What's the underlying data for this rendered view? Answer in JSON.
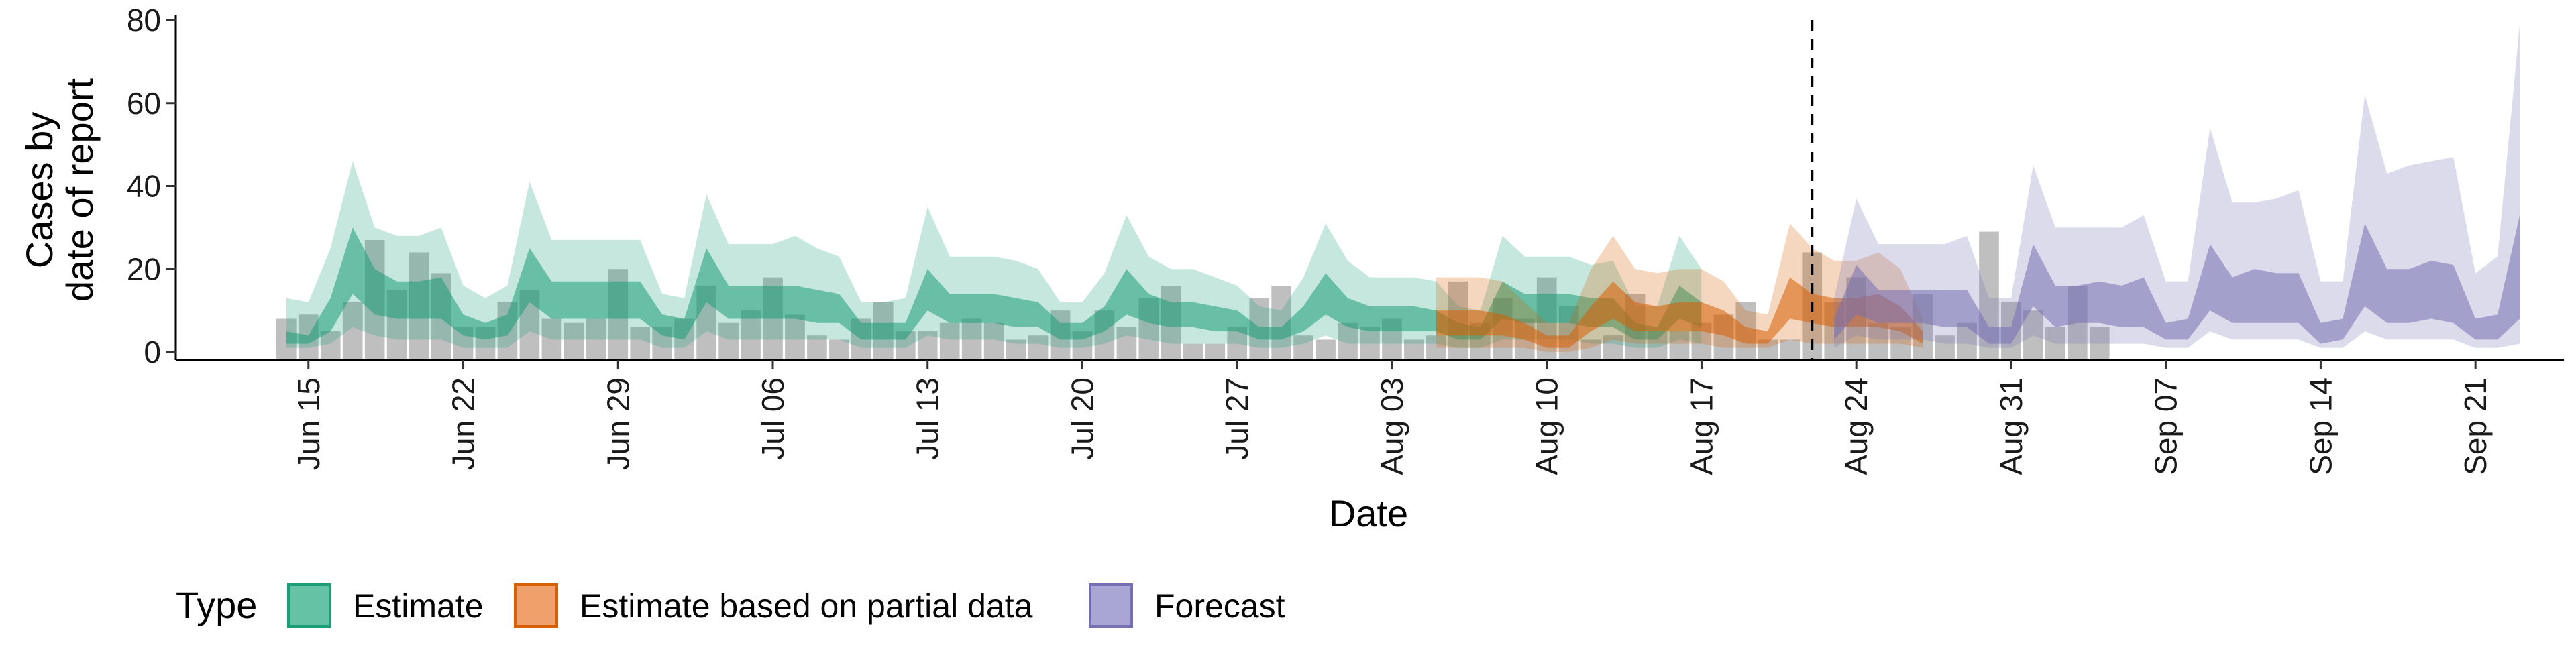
{
  "chart_data": {
    "type": "area",
    "title": "",
    "xlabel": "Date",
    "ylabel": [
      "Cases by",
      "date of report"
    ],
    "ylim": [
      0,
      80
    ],
    "yticks": [
      0,
      20,
      40,
      60,
      80
    ],
    "xlim": [
      "2020-06-09",
      "2020-09-25"
    ],
    "xticks": [
      {
        "date": "2020-06-15",
        "label": "Jun 15"
      },
      {
        "date": "2020-06-22",
        "label": "Jun 22"
      },
      {
        "date": "2020-06-29",
        "label": "Jun 29"
      },
      {
        "date": "2020-07-06",
        "label": "Jul 06"
      },
      {
        "date": "2020-07-13",
        "label": "Jul 13"
      },
      {
        "date": "2020-07-20",
        "label": "Jul 20"
      },
      {
        "date": "2020-07-27",
        "label": "Jul 27"
      },
      {
        "date": "2020-08-03",
        "label": "Aug 03"
      },
      {
        "date": "2020-08-10",
        "label": "Aug 10"
      },
      {
        "date": "2020-08-17",
        "label": "Aug 17"
      },
      {
        "date": "2020-08-24",
        "label": "Aug 24"
      },
      {
        "date": "2020-08-31",
        "label": "Aug 31"
      },
      {
        "date": "2020-09-07",
        "label": "Sep 07"
      },
      {
        "date": "2020-09-14",
        "label": "Sep 14"
      },
      {
        "date": "2020-09-21",
        "label": "Sep 21"
      }
    ],
    "vline": "2020-08-22",
    "grid": false,
    "legend": {
      "position": "bottom-left",
      "title": "Type",
      "entries": [
        {
          "label": "Estimate",
          "fill": "#66c2a5",
          "stroke": "#1b9e77"
        },
        {
          "label": "Estimate based on partial data",
          "fill": "#f0a06a",
          "stroke": "#d95f02"
        },
        {
          "label": "Forecast",
          "fill": "#a9a5d4",
          "stroke": "#7570b3"
        }
      ]
    },
    "observed_start": "2020-06-14",
    "observed_cases": [
      8,
      9,
      5,
      12,
      27,
      15,
      24,
      19,
      6,
      6,
      12,
      15,
      8,
      7,
      8,
      20,
      6,
      6,
      8,
      16,
      7,
      10,
      18,
      9,
      4,
      3,
      8,
      12,
      5,
      5,
      7,
      8,
      7,
      3,
      4,
      10,
      5,
      10,
      6,
      13,
      16,
      2,
      2,
      6,
      13,
      16,
      4,
      3,
      7,
      6,
      8,
      3,
      4,
      17,
      7,
      13,
      8,
      18,
      11,
      3,
      4,
      14,
      5,
      5,
      7,
      9,
      12,
      3,
      3,
      24,
      12,
      18,
      7,
      6,
      14,
      4,
      7,
      29,
      12,
      10,
      6,
      16,
      6
    ],
    "series": [
      {
        "name": "Estimate",
        "color": "#1b9e77",
        "start": "2020-06-14",
        "upper90": [
          13,
          12,
          25,
          46,
          30,
          28,
          28,
          30,
          16,
          13,
          16,
          41,
          27,
          27,
          27,
          27,
          27,
          14,
          13,
          38,
          26,
          26,
          26,
          28,
          25,
          23,
          12,
          12,
          13,
          35,
          23,
          23,
          23,
          22,
          20,
          12,
          12,
          19,
          33,
          23,
          20,
          20,
          18,
          16,
          11,
          10,
          18,
          31,
          22,
          18,
          18,
          18,
          17,
          11,
          10,
          28,
          23,
          23,
          23,
          21,
          22,
          11,
          11,
          28,
          20
        ],
        "upper50": [
          5,
          4,
          13,
          30,
          20,
          17,
          17,
          18,
          9,
          7,
          9,
          25,
          17,
          17,
          17,
          17,
          17,
          9,
          8,
          25,
          16,
          16,
          16,
          16,
          15,
          14,
          7,
          7,
          7,
          20,
          14,
          14,
          14,
          13,
          12,
          7,
          7,
          11,
          20,
          14,
          12,
          12,
          11,
          10,
          6,
          6,
          11,
          19,
          13,
          11,
          11,
          11,
          10,
          7,
          6,
          17,
          14,
          14,
          14,
          13,
          13,
          7,
          6,
          16,
          12
        ],
        "lower50": [
          2,
          2,
          5,
          14,
          9,
          8,
          8,
          8,
          4,
          3,
          4,
          12,
          8,
          8,
          8,
          8,
          8,
          4,
          3,
          12,
          8,
          8,
          8,
          8,
          7,
          7,
          3,
          3,
          3,
          10,
          7,
          7,
          7,
          6,
          6,
          3,
          3,
          5,
          9,
          7,
          6,
          6,
          5,
          5,
          3,
          3,
          5,
          9,
          6,
          5,
          5,
          5,
          5,
          3,
          3,
          8,
          7,
          7,
          7,
          6,
          6,
          3,
          3,
          8,
          6
        ],
        "lower90": [
          1,
          1,
          2,
          6,
          4,
          3,
          3,
          3,
          1,
          1,
          1,
          5,
          3,
          3,
          3,
          3,
          3,
          1,
          1,
          5,
          3,
          3,
          3,
          3,
          3,
          3,
          1,
          1,
          1,
          4,
          3,
          3,
          3,
          2,
          2,
          1,
          1,
          2,
          4,
          3,
          2,
          2,
          2,
          2,
          1,
          1,
          2,
          4,
          2,
          2,
          2,
          2,
          2,
          1,
          1,
          3,
          3,
          3,
          3,
          2,
          2,
          1,
          1,
          3,
          2
        ]
      },
      {
        "name": "Estimate based on partial data",
        "color": "#d95f02",
        "start": "2020-08-05",
        "upper90": [
          18,
          18,
          18,
          17,
          12,
          7,
          7,
          20,
          28,
          20,
          19,
          20,
          20,
          17,
          10,
          9,
          31,
          25,
          22,
          22,
          24,
          20,
          8
        ],
        "upper50": [
          10,
          10,
          10,
          9,
          7,
          4,
          4,
          11,
          17,
          12,
          11,
          12,
          12,
          10,
          6,
          5,
          18,
          14,
          13,
          13,
          14,
          11,
          5
        ],
        "lower50": [
          4,
          4,
          4,
          4,
          3,
          1,
          1,
          5,
          8,
          5,
          5,
          5,
          5,
          4,
          2,
          2,
          8,
          7,
          6,
          6,
          6,
          5,
          2
        ],
        "lower90": [
          1,
          1,
          1,
          1,
          1,
          0,
          0,
          1,
          3,
          2,
          2,
          2,
          2,
          1,
          1,
          1,
          3,
          2,
          2,
          2,
          2,
          2,
          1
        ]
      },
      {
        "name": "Forecast",
        "color": "#7570b3",
        "start": "2020-08-23",
        "upper90": [
          13,
          37,
          26,
          26,
          26,
          26,
          28,
          13,
          13,
          45,
          30,
          30,
          30,
          30,
          33,
          17,
          17,
          54,
          36,
          36,
          37,
          39,
          17,
          17,
          62,
          43,
          45,
          46,
          47,
          19,
          23,
          79
        ],
        "upper50": [
          8,
          21,
          15,
          15,
          15,
          15,
          15,
          6,
          6,
          26,
          16,
          16,
          17,
          16,
          18,
          7,
          8,
          26,
          18,
          20,
          19,
          19,
          7,
          8,
          31,
          20,
          20,
          22,
          21,
          8,
          9,
          33
        ],
        "lower50": [
          3,
          9,
          7,
          7,
          7,
          6,
          6,
          2,
          2,
          11,
          6,
          7,
          7,
          6,
          6,
          3,
          3,
          10,
          7,
          7,
          7,
          7,
          2,
          3,
          11,
          7,
          7,
          8,
          7,
          3,
          3,
          8
        ],
        "lower90": [
          1,
          4,
          3,
          3,
          3,
          2,
          2,
          1,
          1,
          4,
          2,
          2,
          2,
          2,
          2,
          1,
          1,
          5,
          3,
          3,
          3,
          3,
          1,
          1,
          5,
          3,
          3,
          3,
          3,
          1,
          1,
          2
        ]
      }
    ]
  }
}
